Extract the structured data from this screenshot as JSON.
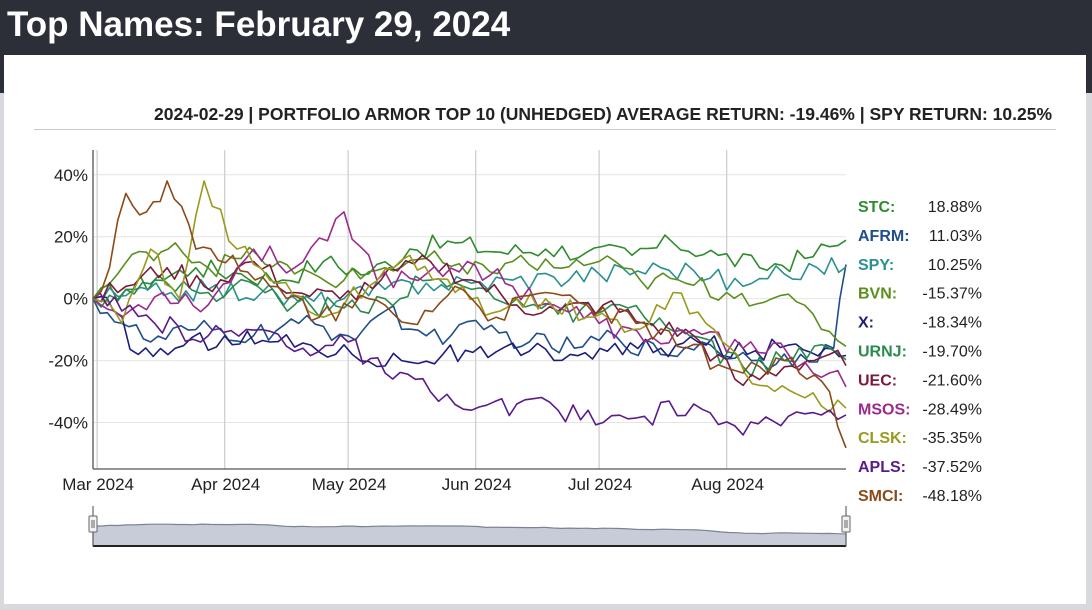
{
  "page": {
    "title": "Top Names: February 29, 2024"
  },
  "header": {
    "text": "2024-02-29 | PORTFOLIO ARMOR TOP 10 (UNHEDGED) AVERAGE RETURN: -19.46% | SPY RETURN: 10.25%"
  },
  "chart_data": {
    "type": "line",
    "title": "",
    "xlabel": "",
    "ylabel": "",
    "ylim": [
      -55,
      48
    ],
    "x_range": [
      "2024-02-29",
      "2024-08-30"
    ],
    "y_ticks": [
      40,
      20,
      0,
      -20,
      -40
    ],
    "y_tick_labels": [
      "40%",
      "20%",
      "0%",
      "-20%",
      "-40%"
    ],
    "x_ticks": [
      {
        "date": "2024-03-01",
        "label": "Mar 2024"
      },
      {
        "date": "2024-04-01",
        "label": "Apr 2024"
      },
      {
        "date": "2024-05-01",
        "label": "May 2024"
      },
      {
        "date": "2024-06-01",
        "label": "Jun 2024"
      },
      {
        "date": "2024-07-01",
        "label": "Jul 2024"
      },
      {
        "date": "2024-08-01",
        "label": "Aug 2024"
      }
    ],
    "grid": true,
    "legend_position": "right",
    "navigator": true,
    "series": [
      {
        "name": "STC",
        "legend_value": "18.88%",
        "color": "#2e8b2e",
        "points": [
          [
            "2024-02-29",
            0
          ],
          [
            "2024-03-08",
            3
          ],
          [
            "2024-03-15",
            6
          ],
          [
            "2024-03-25",
            10
          ],
          [
            "2024-04-05",
            8
          ],
          [
            "2024-04-15",
            6
          ],
          [
            "2024-04-25",
            12
          ],
          [
            "2024-05-06",
            8
          ],
          [
            "2024-05-16",
            16
          ],
          [
            "2024-05-27",
            18
          ],
          [
            "2024-06-07",
            15
          ],
          [
            "2024-06-18",
            16
          ],
          [
            "2024-06-28",
            15
          ],
          [
            "2024-07-09",
            14
          ],
          [
            "2024-07-19",
            18
          ],
          [
            "2024-07-30",
            14
          ],
          [
            "2024-08-09",
            10
          ],
          [
            "2024-08-20",
            13
          ],
          [
            "2024-08-30",
            18.88
          ]
        ]
      },
      {
        "name": "AFRM",
        "legend_value": "11.03%",
        "color": "#1f4e8c",
        "points": [
          [
            "2024-02-29",
            0
          ],
          [
            "2024-03-07",
            -8
          ],
          [
            "2024-03-14",
            -14
          ],
          [
            "2024-03-25",
            -10
          ],
          [
            "2024-04-08",
            -12
          ],
          [
            "2024-04-19",
            -8
          ],
          [
            "2024-05-01",
            -12
          ],
          [
            "2024-05-10",
            -4
          ],
          [
            "2024-05-20",
            -12
          ],
          [
            "2024-06-03",
            -10
          ],
          [
            "2024-06-14",
            -14
          ],
          [
            "2024-06-25",
            -16
          ],
          [
            "2024-07-05",
            -12
          ],
          [
            "2024-07-16",
            -18
          ],
          [
            "2024-07-26",
            -14
          ],
          [
            "2024-08-07",
            -20
          ],
          [
            "2024-08-19",
            -18
          ],
          [
            "2024-08-27",
            -16
          ],
          [
            "2024-08-30",
            11.03
          ]
        ]
      },
      {
        "name": "SPY",
        "legend_value": "10.25%",
        "color": "#2a9090",
        "points": [
          [
            "2024-02-29",
            0
          ],
          [
            "2024-03-08",
            1
          ],
          [
            "2024-03-19",
            2
          ],
          [
            "2024-03-28",
            3
          ],
          [
            "2024-04-10",
            2
          ],
          [
            "2024-04-19",
            -1
          ],
          [
            "2024-04-30",
            0
          ],
          [
            "2024-05-10",
            3
          ],
          [
            "2024-05-20",
            5
          ],
          [
            "2024-05-31",
            5
          ],
          [
            "2024-06-10",
            6
          ],
          [
            "2024-06-20",
            7
          ],
          [
            "2024-07-01",
            8
          ],
          [
            "2024-07-16",
            10
          ],
          [
            "2024-07-24",
            9
          ],
          [
            "2024-08-05",
            4
          ],
          [
            "2024-08-15",
            8
          ],
          [
            "2024-08-23",
            10
          ],
          [
            "2024-08-30",
            10.25
          ]
        ]
      },
      {
        "name": "BVN",
        "legend_value": "-15.37%",
        "color": "#5a8f1e",
        "points": [
          [
            "2024-02-29",
            0
          ],
          [
            "2024-03-06",
            8
          ],
          [
            "2024-03-13",
            15
          ],
          [
            "2024-03-20",
            18
          ],
          [
            "2024-03-28",
            10
          ],
          [
            "2024-04-09",
            14
          ],
          [
            "2024-04-18",
            8
          ],
          [
            "2024-04-30",
            6
          ],
          [
            "2024-05-10",
            10
          ],
          [
            "2024-05-20",
            13
          ],
          [
            "2024-05-30",
            8
          ],
          [
            "2024-06-10",
            12
          ],
          [
            "2024-06-20",
            10
          ],
          [
            "2024-07-01",
            12
          ],
          [
            "2024-07-11",
            6
          ],
          [
            "2024-07-22",
            5
          ],
          [
            "2024-08-01",
            2
          ],
          [
            "2024-08-12",
            0
          ],
          [
            "2024-08-22",
            -5
          ],
          [
            "2024-08-30",
            -15.37
          ]
        ]
      },
      {
        "name": "X",
        "legend_value": "-18.34%",
        "color": "#1e1e7a",
        "points": [
          [
            "2024-02-29",
            0
          ],
          [
            "2024-03-05",
            -4
          ],
          [
            "2024-03-11",
            -18
          ],
          [
            "2024-03-20",
            -16
          ],
          [
            "2024-04-01",
            -12
          ],
          [
            "2024-04-12",
            -14
          ],
          [
            "2024-04-22",
            -15
          ],
          [
            "2024-05-02",
            -18
          ],
          [
            "2024-05-14",
            -20
          ],
          [
            "2024-05-24",
            -18
          ],
          [
            "2024-06-04",
            -19
          ],
          [
            "2024-06-14",
            -17
          ],
          [
            "2024-06-24",
            -18
          ],
          [
            "2024-07-03",
            -17
          ],
          [
            "2024-07-16",
            -16
          ],
          [
            "2024-07-25",
            -14
          ],
          [
            "2024-08-06",
            -18
          ],
          [
            "2024-08-16",
            -15
          ],
          [
            "2024-08-25",
            -16
          ],
          [
            "2024-08-30",
            -18.34
          ]
        ]
      },
      {
        "name": "URNJ",
        "legend_value": "-19.70%",
        "color": "#2a8a4e",
        "points": [
          [
            "2024-02-29",
            0
          ],
          [
            "2024-03-08",
            3
          ],
          [
            "2024-03-18",
            5
          ],
          [
            "2024-03-28",
            2
          ],
          [
            "2024-04-09",
            4
          ],
          [
            "2024-04-18",
            -2
          ],
          [
            "2024-04-30",
            -3
          ],
          [
            "2024-05-10",
            0
          ],
          [
            "2024-05-21",
            6
          ],
          [
            "2024-05-31",
            3
          ],
          [
            "2024-06-11",
            0
          ],
          [
            "2024-06-21",
            -5
          ],
          [
            "2024-07-02",
            -4
          ],
          [
            "2024-07-12",
            -6
          ],
          [
            "2024-07-23",
            -12
          ],
          [
            "2024-08-05",
            -22
          ],
          [
            "2024-08-15",
            -20
          ],
          [
            "2024-08-26",
            -16
          ],
          [
            "2024-08-30",
            -19.7
          ]
        ]
      },
      {
        "name": "UEC",
        "legend_value": "-21.60%",
        "color": "#7a1a3a",
        "points": [
          [
            "2024-02-29",
            0
          ],
          [
            "2024-03-08",
            4
          ],
          [
            "2024-03-18",
            10
          ],
          [
            "2024-03-27",
            4
          ],
          [
            "2024-04-08",
            12
          ],
          [
            "2024-04-18",
            2
          ],
          [
            "2024-04-29",
            0
          ],
          [
            "2024-05-09",
            6
          ],
          [
            "2024-05-21",
            12
          ],
          [
            "2024-05-31",
            6
          ],
          [
            "2024-06-11",
            -2
          ],
          [
            "2024-06-21",
            -4
          ],
          [
            "2024-07-02",
            -2
          ],
          [
            "2024-07-12",
            -8
          ],
          [
            "2024-07-24",
            -12
          ],
          [
            "2024-08-05",
            -28
          ],
          [
            "2024-08-15",
            -22
          ],
          [
            "2024-08-26",
            -18
          ],
          [
            "2024-08-30",
            -21.6
          ]
        ]
      },
      {
        "name": "MSOS",
        "legend_value": "-28.49%",
        "color": "#9a2a8e",
        "points": [
          [
            "2024-02-29",
            0
          ],
          [
            "2024-03-07",
            -6
          ],
          [
            "2024-03-17",
            2
          ],
          [
            "2024-03-28",
            -2
          ],
          [
            "2024-04-08",
            16
          ],
          [
            "2024-04-18",
            10
          ],
          [
            "2024-04-30",
            28
          ],
          [
            "2024-05-08",
            6
          ],
          [
            "2024-05-20",
            8
          ],
          [
            "2024-05-30",
            12
          ],
          [
            "2024-06-10",
            4
          ],
          [
            "2024-06-20",
            -2
          ],
          [
            "2024-07-01",
            -8
          ],
          [
            "2024-07-12",
            -14
          ],
          [
            "2024-07-24",
            -10
          ],
          [
            "2024-08-05",
            -16
          ],
          [
            "2024-08-16",
            -18
          ],
          [
            "2024-08-26",
            -24
          ],
          [
            "2024-08-30",
            -28.49
          ]
        ]
      },
      {
        "name": "CLSK",
        "legend_value": "-35.35%",
        "color": "#9a9a1e",
        "points": [
          [
            "2024-02-29",
            0
          ],
          [
            "2024-03-07",
            -8
          ],
          [
            "2024-03-14",
            16
          ],
          [
            "2024-03-21",
            0
          ],
          [
            "2024-03-27",
            38
          ],
          [
            "2024-04-04",
            16
          ],
          [
            "2024-04-14",
            5
          ],
          [
            "2024-04-25",
            -6
          ],
          [
            "2024-05-06",
            4
          ],
          [
            "2024-05-16",
            14
          ],
          [
            "2024-05-27",
            2
          ],
          [
            "2024-06-07",
            -4
          ],
          [
            "2024-06-18",
            0
          ],
          [
            "2024-06-28",
            -6
          ],
          [
            "2024-07-09",
            -10
          ],
          [
            "2024-07-19",
            2
          ],
          [
            "2024-07-31",
            -14
          ],
          [
            "2024-08-09",
            -28
          ],
          [
            "2024-08-20",
            -32
          ],
          [
            "2024-08-30",
            -35.35
          ]
        ]
      },
      {
        "name": "APLS",
        "legend_value": "-37.52%",
        "color": "#5a1a8a",
        "points": [
          [
            "2024-02-29",
            0
          ],
          [
            "2024-03-07",
            -4
          ],
          [
            "2024-03-15",
            -8
          ],
          [
            "2024-03-28",
            -12
          ],
          [
            "2024-04-10",
            -10
          ],
          [
            "2024-04-20",
            -16
          ],
          [
            "2024-05-01",
            -14
          ],
          [
            "2024-05-10",
            -24
          ],
          [
            "2024-05-21",
            -30
          ],
          [
            "2024-05-31",
            -36
          ],
          [
            "2024-06-11",
            -34
          ],
          [
            "2024-06-21",
            -36
          ],
          [
            "2024-07-02",
            -40
          ],
          [
            "2024-07-12",
            -38
          ],
          [
            "2024-07-24",
            -34
          ],
          [
            "2024-08-05",
            -44
          ],
          [
            "2024-08-16",
            -38
          ],
          [
            "2024-08-26",
            -36
          ],
          [
            "2024-08-30",
            -37.52
          ]
        ]
      },
      {
        "name": "SMCI",
        "legend_value": "-48.18%",
        "color": "#8a4a1a",
        "points": [
          [
            "2024-02-29",
            0
          ],
          [
            "2024-03-04",
            10
          ],
          [
            "2024-03-08",
            34
          ],
          [
            "2024-03-13",
            28
          ],
          [
            "2024-03-18",
            38
          ],
          [
            "2024-03-25",
            16
          ],
          [
            "2024-04-03",
            14
          ],
          [
            "2024-04-12",
            4
          ],
          [
            "2024-04-24",
            -6
          ],
          [
            "2024-05-06",
            0
          ],
          [
            "2024-05-16",
            -8
          ],
          [
            "2024-05-27",
            4
          ],
          [
            "2024-06-06",
            -6
          ],
          [
            "2024-06-18",
            2
          ],
          [
            "2024-06-28",
            -2
          ],
          [
            "2024-07-10",
            -8
          ],
          [
            "2024-07-22",
            -16
          ],
          [
            "2024-08-05",
            -24
          ],
          [
            "2024-08-15",
            -20
          ],
          [
            "2024-08-26",
            -30
          ],
          [
            "2024-08-30",
            -48.18
          ]
        ]
      }
    ]
  }
}
